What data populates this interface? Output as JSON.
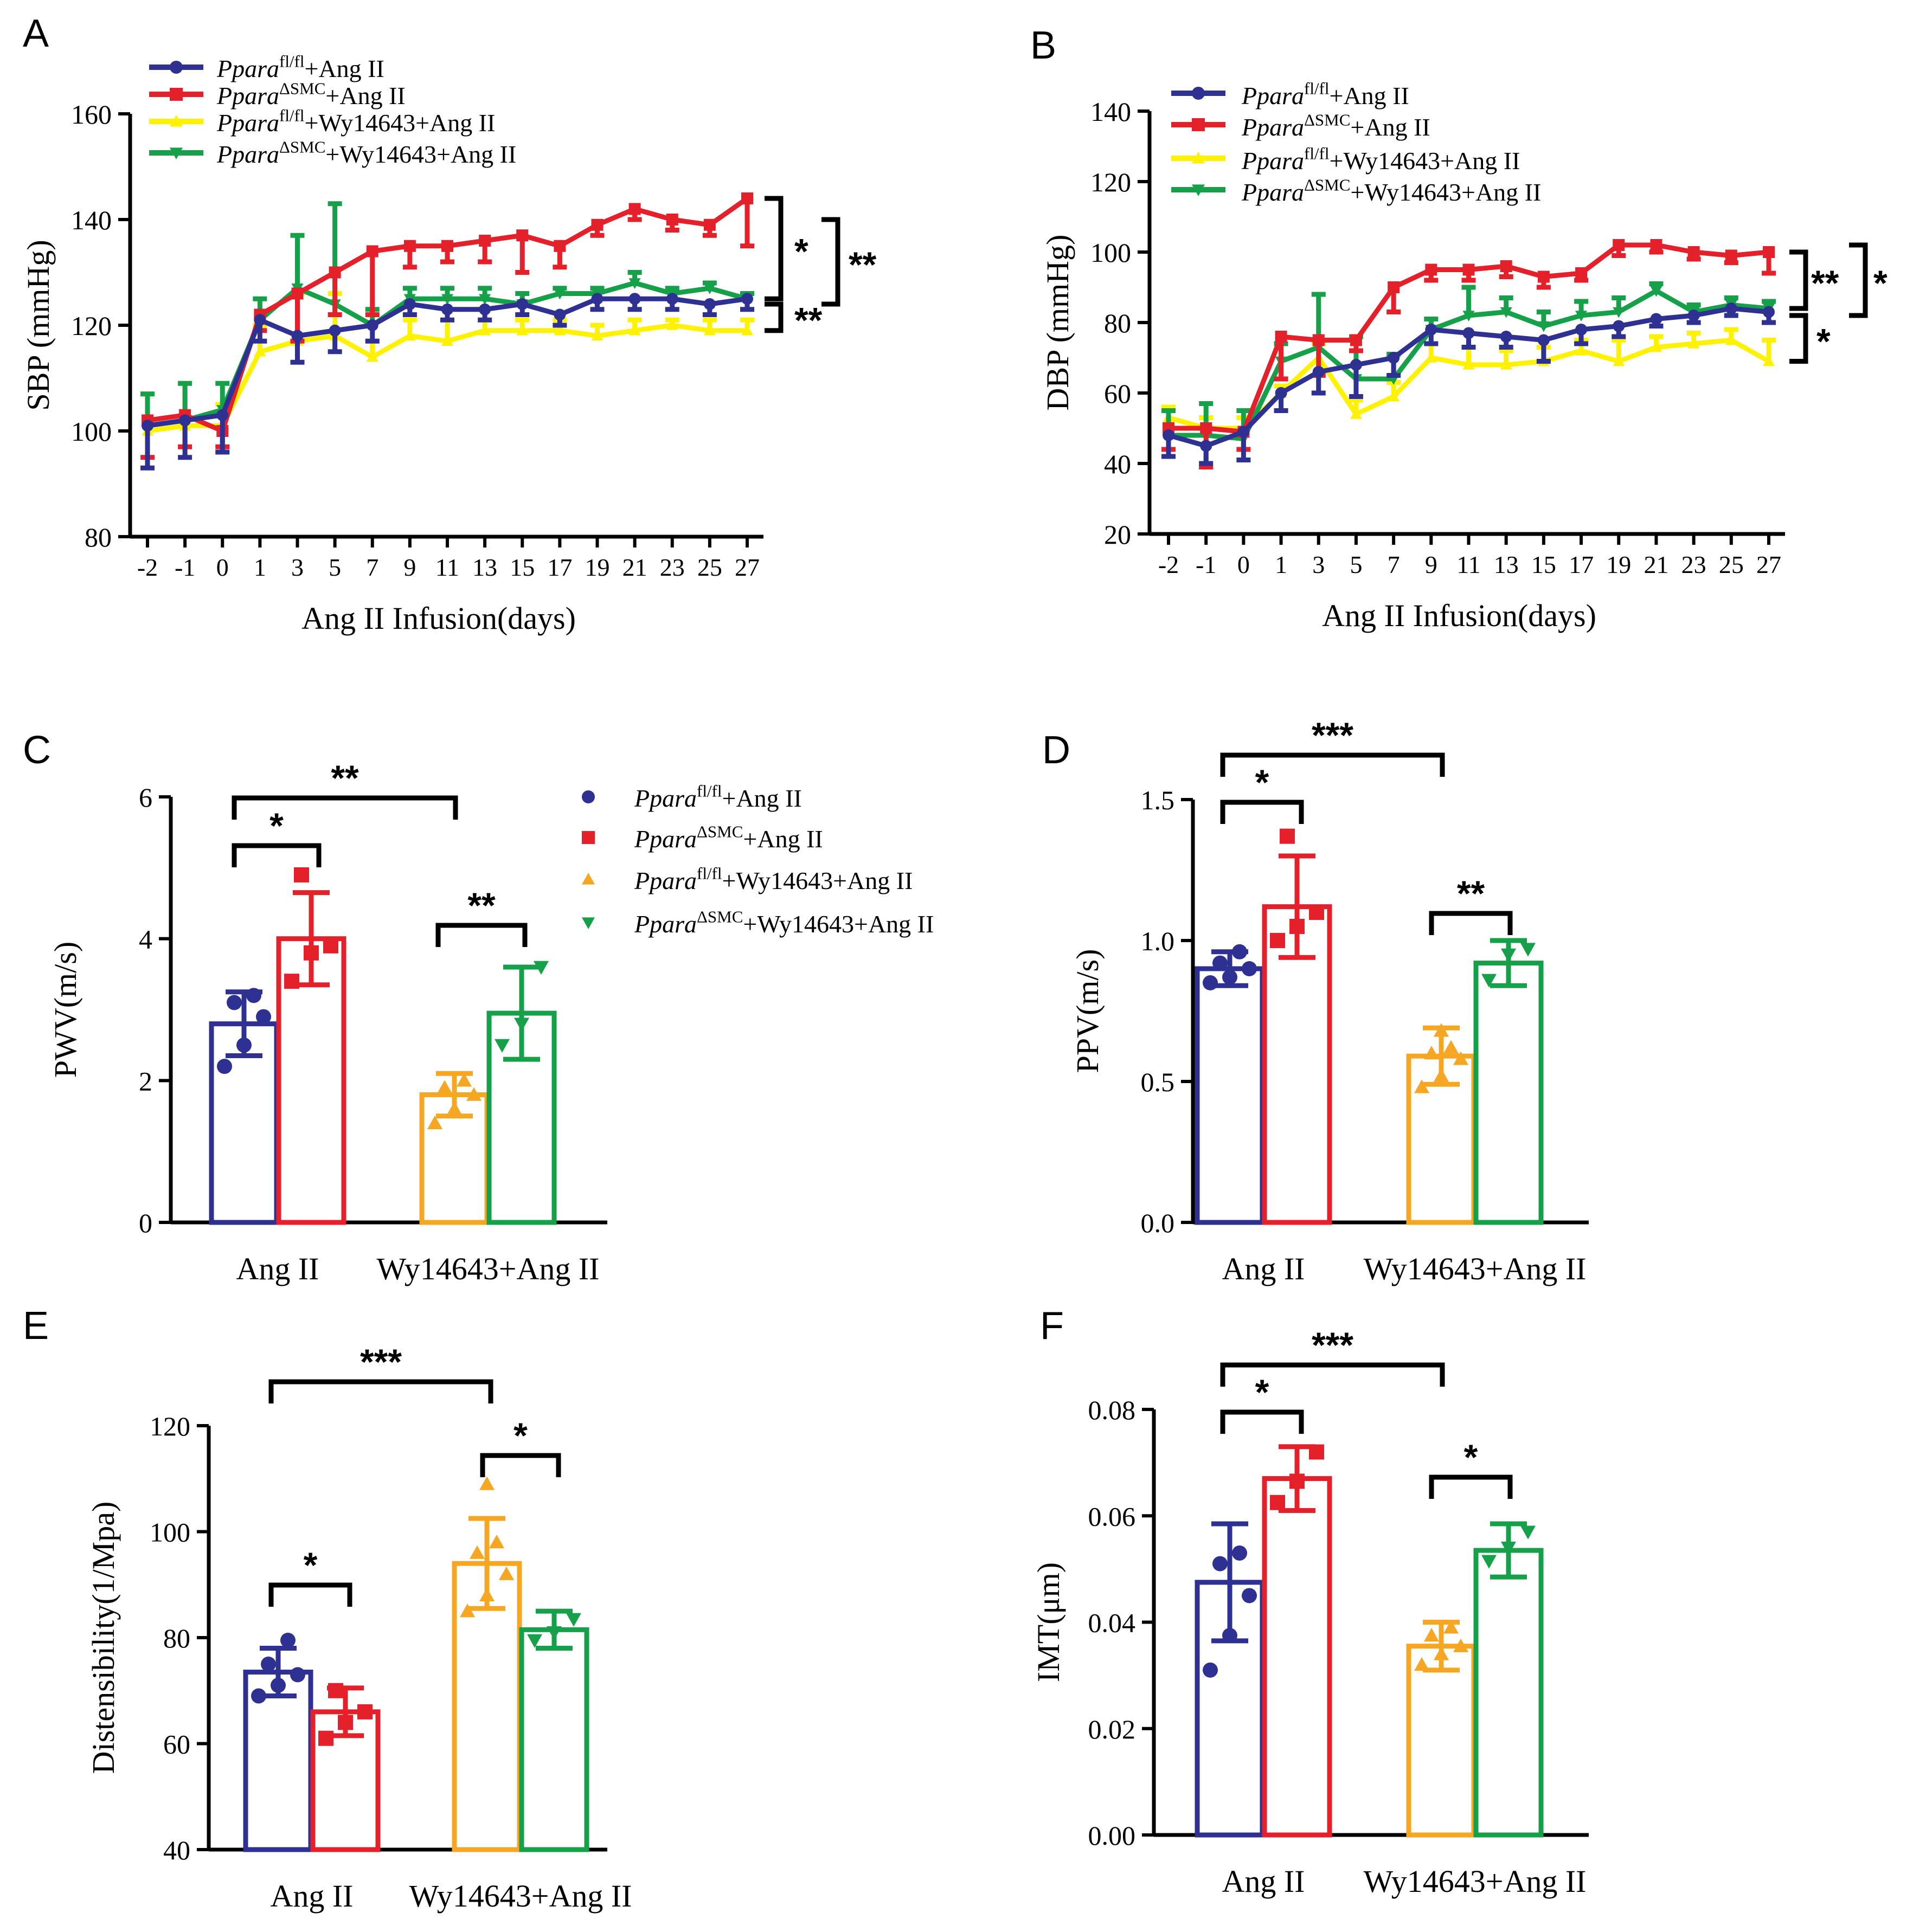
{
  "legend": {
    "prefix": "Ppara",
    "items": [
      {
        "sup": "fl/fl",
        "suffix": "+Ang II",
        "color": "#2E3192"
      },
      {
        "sup": "ΔSMC",
        "suffix": "+Ang II",
        "color": "#E4202A"
      },
      {
        "sup": "fl/fl",
        "suffix": "+Wy14643+Ang II",
        "color": "#FFF200"
      },
      {
        "sup": "ΔSMC",
        "suffix": "+Wy14643+Ang II",
        "color": "#16A04A"
      }
    ],
    "bar_colors": [
      "#2E3192",
      "#E4202A",
      "#F5A623",
      "#16A04A"
    ]
  },
  "chart_data": [
    {
      "panel": "A",
      "type": "line",
      "xlabel": "Ang II Infusion(days)",
      "ylabel": "SBP (mmHg)",
      "ylim": [
        80,
        160
      ],
      "yticks": [
        80,
        100,
        120,
        140,
        160
      ],
      "x": [
        "-2",
        "-1",
        "0",
        "1",
        "3",
        "5",
        "7",
        "9",
        "11",
        "13",
        "15",
        "17",
        "19",
        "21",
        "23",
        "25",
        "27"
      ],
      "series": [
        {
          "name": "Ppara fl/fl+Ang II",
          "values": [
            101,
            102,
            103,
            121,
            118,
            119,
            120,
            124,
            123,
            123,
            124,
            122,
            125,
            125,
            125,
            124,
            125
          ],
          "err": [
            8,
            7,
            7,
            4,
            5,
            4,
            3,
            2,
            2,
            2,
            2,
            2,
            2,
            2,
            2,
            2,
            2
          ]
        },
        {
          "name": "Ppara ΔSMC+Ang II",
          "values": [
            102,
            103,
            100,
            122,
            126,
            130,
            134,
            135,
            135,
            136,
            137,
            135,
            139,
            142,
            140,
            139,
            144
          ],
          "err": [
            7,
            6,
            3,
            3,
            9,
            8,
            12,
            4,
            3,
            4,
            7,
            4,
            2,
            2,
            2,
            2,
            9
          ]
        },
        {
          "name": "Ppara fl/fl+Wy14643+Ang II",
          "values": [
            100,
            101,
            101,
            115,
            117,
            118,
            114,
            118,
            117,
            119,
            119,
            119,
            118,
            119,
            120,
            119,
            119
          ],
          "err": [
            7,
            8,
            4,
            5,
            9,
            8,
            3,
            3,
            4,
            2,
            2,
            2,
            2,
            2,
            1,
            2,
            2
          ]
        },
        {
          "name": "Ppara ΔSMC+Wy14643+Ang II",
          "values": [
            101,
            102,
            104,
            121,
            127,
            124,
            120,
            125,
            125,
            125,
            124,
            126,
            126,
            128,
            126,
            127,
            125
          ],
          "err": [
            6,
            7,
            5,
            4,
            10,
            19,
            3,
            2,
            2,
            2,
            2,
            1,
            1,
            2,
            1,
            1,
            1
          ]
        }
      ],
      "brackets": [
        "*",
        "**",
        "**"
      ]
    },
    {
      "panel": "B",
      "type": "line",
      "xlabel": "Ang II Infusion(days)",
      "ylabel": "DBP (mmHg)",
      "ylim": [
        20,
        140
      ],
      "yticks": [
        20,
        40,
        60,
        80,
        100,
        120,
        140
      ],
      "x": [
        "-2",
        "-1",
        "0",
        "1",
        "3",
        "5",
        "7",
        "9",
        "11",
        "13",
        "15",
        "17",
        "19",
        "21",
        "23",
        "25",
        "27"
      ],
      "series": [
        {
          "name": "Ppara fl/fl+Ang II",
          "values": [
            48,
            45,
            49,
            60,
            66,
            68,
            70,
            78,
            77,
            76,
            75,
            78,
            79,
            81,
            82,
            84,
            83
          ],
          "err": [
            6,
            5,
            8,
            5,
            6,
            9,
            5,
            4,
            4,
            3,
            6,
            4,
            3,
            2,
            2,
            2,
            3
          ]
        },
        {
          "name": "Ppara ΔSMC+Ang II",
          "values": [
            50,
            50,
            49,
            76,
            75,
            75,
            90,
            95,
            95,
            96,
            93,
            94,
            102,
            102,
            100,
            99,
            100
          ],
          "err": [
            6,
            11,
            5,
            12,
            10,
            3,
            7,
            3,
            3,
            3,
            3,
            2,
            3,
            2,
            2,
            2,
            6
          ]
        },
        {
          "name": "Ppara fl/fl+Wy14643+Ang II",
          "values": [
            53,
            50,
            50,
            60,
            70,
            54,
            59,
            70,
            68,
            68,
            69,
            72,
            69,
            73,
            74,
            75,
            69
          ],
          "err": [
            3,
            3,
            3,
            2,
            4,
            4,
            4,
            4,
            5,
            4,
            4,
            3,
            6,
            3,
            3,
            3,
            6
          ]
        },
        {
          "name": "Ppara ΔSMC+Wy14643+Ang II",
          "values": [
            48,
            48,
            47,
            69,
            73,
            64,
            64,
            78,
            82,
            83,
            79,
            82,
            83,
            89,
            83,
            85,
            84
          ],
          "err": [
            7,
            9,
            8,
            5,
            15,
            12,
            7,
            3,
            8,
            4,
            4,
            4,
            4,
            2,
            2,
            2,
            2
          ]
        }
      ],
      "brackets": [
        "**",
        "*",
        "*"
      ]
    },
    {
      "panel": "C",
      "type": "bar",
      "ylabel": "PWV(m/s)",
      "ylim": [
        0,
        6
      ],
      "yticks": [
        "0",
        "2",
        "4",
        "6"
      ],
      "groups": [
        "Ang II",
        "Wy14643+Ang II"
      ],
      "bars": [
        {
          "name": "Ppara fl/fl+Ang II",
          "value": 2.8,
          "err": 0.45,
          "points": [
            2.2,
            2.5,
            2.9,
            3.1,
            3.2
          ]
        },
        {
          "name": "Ppara ΔSMC+Ang II",
          "value": 4.0,
          "err": 0.65,
          "points": [
            3.4,
            3.8,
            3.9,
            4.9
          ]
        },
        {
          "name": "Ppara fl/fl+Wy14643+Ang II",
          "value": 1.8,
          "err": 0.3,
          "points": [
            1.4,
            1.6,
            1.8,
            1.9,
            2.0
          ]
        },
        {
          "name": "Ppara ΔSMC+Wy14643+Ang II",
          "value": 2.95,
          "err": 0.65,
          "points": [
            2.5,
            2.8,
            3.6
          ]
        }
      ],
      "sig": [
        "*",
        "**",
        "**"
      ]
    },
    {
      "panel": "D",
      "type": "bar",
      "ylabel": "PPV(m/s)",
      "ylim": [
        0,
        1.5
      ],
      "yticks": [
        "0.0",
        "0.5",
        "1.0",
        "1.5"
      ],
      "groups": [
        "Ang II",
        "Wy14643+Ang II"
      ],
      "bars": [
        {
          "name": "Ppara fl/fl+Ang II",
          "value": 0.9,
          "err": 0.06,
          "points": [
            0.85,
            0.87,
            0.9,
            0.92,
            0.96
          ]
        },
        {
          "name": "Ppara ΔSMC+Ang II",
          "value": 1.12,
          "err": 0.18,
          "points": [
            1.0,
            1.05,
            1.1,
            1.37
          ]
        },
        {
          "name": "Ppara fl/fl+Wy14643+Ang II",
          "value": 0.59,
          "err": 0.1,
          "points": [
            0.48,
            0.52,
            0.58,
            0.6,
            0.62,
            0.68
          ]
        },
        {
          "name": "Ppara ΔSMC+Wy14643+Ang II",
          "value": 0.92,
          "err": 0.08,
          "points": [
            0.86,
            0.95,
            0.97
          ]
        }
      ],
      "sig": [
        "*",
        "***",
        "**"
      ]
    },
    {
      "panel": "E",
      "type": "bar",
      "ylabel": "Distensibility(1/Mpa)",
      "ylim": [
        40,
        120
      ],
      "yticks": [
        "40",
        "60",
        "80",
        "100",
        "120"
      ],
      "groups": [
        "Ang II",
        "Wy14643+Ang II"
      ],
      "bars": [
        {
          "name": "Ppara fl/fl+Ang II",
          "value": 73.5,
          "err": 4.5,
          "points": [
            69,
            71,
            73,
            75,
            79.5
          ]
        },
        {
          "name": "Ppara ΔSMC+Ang II",
          "value": 66,
          "err": 4.5,
          "points": [
            61,
            64,
            66,
            70
          ]
        },
        {
          "name": "Ppara fl/fl+Wy14643+Ang II",
          "value": 94,
          "err": 8.5,
          "points": [
            85,
            88,
            92,
            96,
            98,
            109
          ]
        },
        {
          "name": "Ppara ΔSMC+Wy14643+Ang II",
          "value": 81.5,
          "err": 3.5,
          "points": [
            79.5,
            81,
            83.5
          ]
        }
      ],
      "sig": [
        "*",
        "***",
        "*"
      ]
    },
    {
      "panel": "F",
      "type": "bar",
      "ylabel": "IMT(μm)",
      "ylim": [
        0,
        0.08
      ],
      "yticks": [
        "0.00",
        "0.02",
        "0.04",
        "0.06",
        "0.08"
      ],
      "groups": [
        "Ang II",
        "Wy14643+Ang II"
      ],
      "bars": [
        {
          "name": "Ppara fl/fl+Ang II",
          "value": 0.0475,
          "err": 0.011,
          "points": [
            0.031,
            0.0375,
            0.045,
            0.051,
            0.053
          ]
        },
        {
          "name": "Ppara ΔSMC+Ang II",
          "value": 0.067,
          "err": 0.006,
          "points": [
            0.0625,
            0.0665,
            0.072
          ]
        },
        {
          "name": "Ppara fl/fl+Wy14643+Ang II",
          "value": 0.0355,
          "err": 0.0045,
          "points": [
            0.032,
            0.034,
            0.0355,
            0.0375,
            0.039
          ]
        },
        {
          "name": "Ppara ΔSMC+Wy14643+Ang II",
          "value": 0.0535,
          "err": 0.005,
          "points": [
            0.0515,
            0.054,
            0.057
          ]
        }
      ],
      "sig": [
        "*",
        "***",
        "*"
      ]
    }
  ]
}
